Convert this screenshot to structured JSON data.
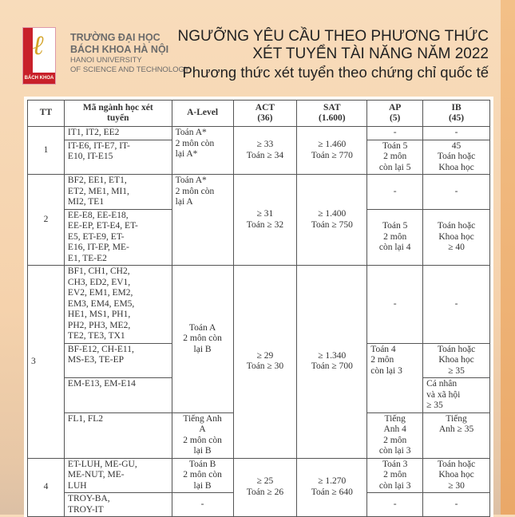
{
  "header": {
    "logo_text": "BÁCH KHOA",
    "university_vi_1": "TRƯỜNG ĐẠI HỌC",
    "university_vi_2": "BÁCH KHOA HÀ NỘI",
    "university_en_1": "HANOI UNIVERSITY",
    "university_en_2": "OF SCIENCE AND TECHNOLOGY",
    "title_1": "NGƯỠNG YÊU CẦU THEO PHƯƠNG THỨC",
    "title_2": "XÉT TUYỂN TÀI NĂNG NĂM 2022",
    "subtitle": "Phương thức xét tuyển theo chứng chỉ quốc tế"
  },
  "table": {
    "columns": [
      "TT",
      "Mã ngành học xét\ntuyển",
      "A-Level",
      "ACT\n(36)",
      "SAT\n(1.600)",
      "AP\n(5)",
      "IB\n(45)"
    ],
    "g1": {
      "tt": "1",
      "alevel": "Toán A*\n2 môn còn\nlại A*",
      "act": "≥ 33\nToán ≥ 34",
      "sat": "≥ 1.460\nToán ≥ 770",
      "r1": {
        "codes": "IT1, IT2, EE2",
        "ap": "-",
        "ib": "-"
      },
      "r2": {
        "codes": "IT-E6, IT-E7, IT-\nE10, IT-E15",
        "ap": "Toán 5\n2 môn\ncòn lại 5",
        "ib": "45\nToán hoặc\nKhoa học"
      }
    },
    "g2": {
      "tt": "2",
      "alevel": "Toán A*\n2 môn còn\nlại A",
      "act": "≥ 31\nToán ≥ 32",
      "sat": "≥ 1.400\nToán ≥ 750",
      "r1": {
        "codes": "BF2, EE1, ET1,\nET2, ME1, MI1,\nMI2, TE1",
        "ap": "-",
        "ib": "-"
      },
      "r2": {
        "codes": "EE-E8, EE-E18,\nEE-EP, ET-E4, ET-\nE5, ET-E9, ET-\nE16, IT-EP, ME-\nE1, TE-E2",
        "ap": "Toán 5\n2 môn\ncòn lại 4",
        "ib": "Toán hoặc\nKhoa học\n≥ 40"
      }
    },
    "g3": {
      "tt": "3",
      "alevel": "Toán A\n2 môn còn\nlại B",
      "act": "≥ 29\nToán ≥ 30",
      "sat": "≥ 1.340\nToán ≥ 700",
      "r1": {
        "codes": "BF1, CH1, CH2,\nCH3, ED2, EV1,\nEV2, EM1, EM2,\nEM3, EM4, EM5,\nHE1, MS1, PH1,\nPH2, PH3, ME2,\nTE2, TE3, TX1",
        "ap": "-",
        "ib": "-"
      },
      "r2": {
        "codes": "BF-E12, CH-E11,\nMS-E3, TE-EP",
        "ib": "Toán hoặc\nKhoa học\n≥ 35"
      },
      "ap_23": "Toán 4\n2 môn\ncòn lại 3",
      "r3": {
        "codes": "EM-E13, EM-E14",
        "ib": "Cá nhân\nvà xã hội\n≥ 35"
      },
      "r4": {
        "codes": "FL1, FL2",
        "alevel": "Tiếng Anh\nA\n2 môn còn\nlại B",
        "ap": "Tiếng\nAnh 4\n2 môn\ncòn lại 3",
        "ib": "Tiếng\nAnh ≥ 35"
      }
    },
    "g4": {
      "tt": "4",
      "act": "≥ 25\nToán ≥ 26",
      "sat": "≥ 1.270\nToán ≥ 640",
      "r1": {
        "codes": "ET-LUH, ME-GU,\nME-NUT, ME-\nLUH",
        "alevel": "Toán B\n2 môn còn\nlại B",
        "ap": "Toán 3\n2 môn\ncòn lại 3",
        "ib": "Toán hoặc\nKhoa học\n≥ 30"
      },
      "r2": {
        "codes": "TROY-BA,\nTROY-IT",
        "alevel": "-",
        "ap": "-",
        "ib": "-"
      }
    }
  }
}
